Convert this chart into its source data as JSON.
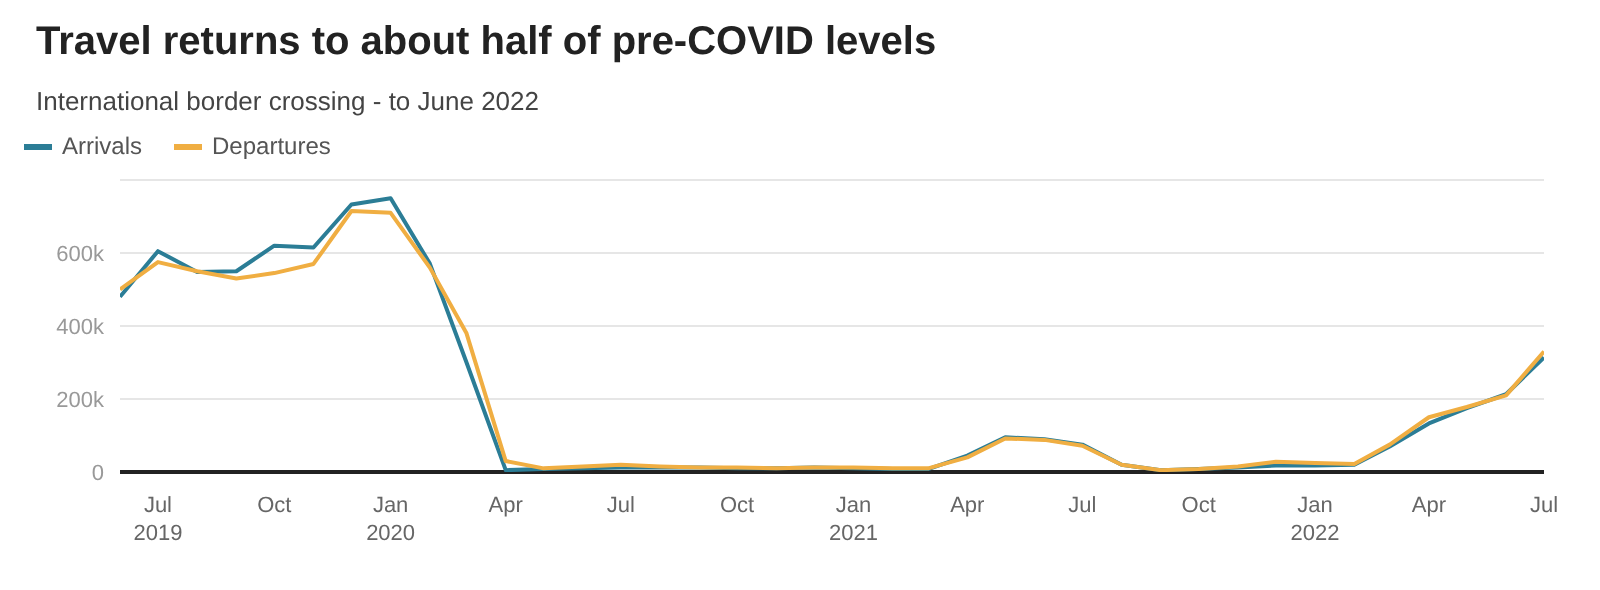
{
  "chart_data": {
    "type": "line",
    "title": "Travel returns to about half of pre-COVID levels",
    "subtitle": "International border crossing - to June 2022",
    "x": [
      "2019-06",
      "2019-07",
      "2019-08",
      "2019-09",
      "2019-10",
      "2019-11",
      "2019-12",
      "2020-01",
      "2020-02",
      "2020-03",
      "2020-04",
      "2020-05",
      "2020-06",
      "2020-07",
      "2020-08",
      "2020-09",
      "2020-10",
      "2020-11",
      "2020-12",
      "2021-01",
      "2021-02",
      "2021-03",
      "2021-04",
      "2021-05",
      "2021-06",
      "2021-07",
      "2021-08",
      "2021-09",
      "2021-10",
      "2021-11",
      "2021-12",
      "2022-01",
      "2022-02",
      "2022-03",
      "2022-04",
      "2022-05",
      "2022-06",
      "2022-07"
    ],
    "series": [
      {
        "name": "Arrivals",
        "color": "#2b7d96",
        "values": [
          480000,
          605000,
          548000,
          550000,
          620000,
          615000,
          733000,
          750000,
          571000,
          300000,
          5000,
          8000,
          10000,
          12000,
          12000,
          12000,
          10000,
          10000,
          12000,
          10000,
          8000,
          8000,
          45000,
          95000,
          90000,
          75000,
          20000,
          5000,
          8000,
          12000,
          18000,
          18000,
          20000,
          70000,
          133000,
          175000,
          213000,
          314000
        ]
      },
      {
        "name": "Departures",
        "color": "#f0ae42",
        "values": [
          500000,
          575000,
          550000,
          530000,
          545000,
          570000,
          715000,
          710000,
          560000,
          380000,
          30000,
          10000,
          15000,
          20000,
          15000,
          12000,
          12000,
          10000,
          12000,
          12000,
          10000,
          10000,
          40000,
          92000,
          88000,
          72000,
          20000,
          5000,
          8000,
          15000,
          28000,
          25000,
          22000,
          75000,
          150000,
          178000,
          210000,
          330000
        ]
      }
    ],
    "xlim": [
      "2019-06",
      "2022-07"
    ],
    "xticks": [
      {
        "value": "2019-07",
        "label": "Jul 2019"
      },
      {
        "value": "2019-10",
        "label": "Oct"
      },
      {
        "value": "2020-01",
        "label": "Jan 2020"
      },
      {
        "value": "2020-04",
        "label": "Apr"
      },
      {
        "value": "2020-07",
        "label": "Jul"
      },
      {
        "value": "2020-10",
        "label": "Oct"
      },
      {
        "value": "2021-01",
        "label": "Jan 2021"
      },
      {
        "value": "2021-04",
        "label": "Apr"
      },
      {
        "value": "2021-07",
        "label": "Jul"
      },
      {
        "value": "2021-10",
        "label": "Oct"
      },
      {
        "value": "2022-01",
        "label": "Jan 2022"
      },
      {
        "value": "2022-04",
        "label": "Apr"
      },
      {
        "value": "2022-07",
        "label": "Jul"
      }
    ],
    "ylim": [
      0,
      800000
    ],
    "yticks": [
      0,
      {
        "value": 200000,
        "label": "200k"
      },
      {
        "value": 400000,
        "label": "400k"
      },
      {
        "value": 600000,
        "label": "600k"
      }
    ],
    "grid": "y",
    "legend": "top left",
    "marker": "none",
    "line_style": "solid"
  }
}
